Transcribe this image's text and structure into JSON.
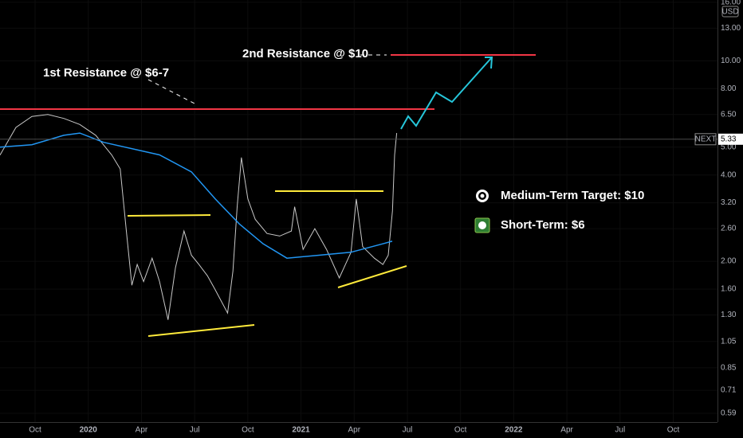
{
  "chart_data": {
    "type": "line",
    "symbol": "NEXT",
    "currency": "USD",
    "last_price": 5.33,
    "annotations": [
      "1st Resistance @ $6-7",
      "2nd Resistance @ $10"
    ],
    "legend_items": [
      "Medium-Term Target: $10",
      "Short-Term: $6"
    ],
    "log_scale": true,
    "xlim": [
      2019.585,
      2022.958
    ],
    "ylim": [
      0.55,
      16.3
    ],
    "xticks": [
      {
        "value": 2019.75,
        "label": "Oct"
      },
      2020,
      {
        "value": 2020.25,
        "label": "Apr"
      },
      {
        "value": 2020.5,
        "label": "Jul"
      },
      {
        "value": 2020.75,
        "label": "Oct"
      },
      2021,
      {
        "value": 2021.25,
        "label": "Apr"
      },
      {
        "value": 2021.5,
        "label": "Jul"
      },
      {
        "value": 2021.75,
        "label": "Oct"
      },
      2022,
      {
        "value": 2022.25,
        "label": "Apr"
      },
      {
        "value": 2022.5,
        "label": "Jul"
      },
      {
        "value": 2022.75,
        "label": "Oct"
      }
    ],
    "yticks": [
      0.59,
      0.71,
      0.85,
      1.05,
      {
        "value": 1.3,
        "label": "1.30"
      },
      {
        "value": 1.6,
        "label": "1.60"
      },
      {
        "value": 2,
        "label": "2.00"
      },
      {
        "value": 2.6,
        "label": "2.60"
      },
      {
        "value": 3.2,
        "label": "3.20"
      },
      {
        "value": 4,
        "label": "4.00"
      },
      {
        "value": 5,
        "label": "5.00"
      },
      {
        "value": 6.5,
        "label": "6.50"
      },
      {
        "value": 8,
        "label": "8.00"
      },
      {
        "value": 10,
        "label": "10.00"
      },
      {
        "value": 13,
        "label": "13.00"
      },
      {
        "value": 16,
        "label": "16.00"
      }
    ],
    "series": [
      {
        "color": "#c8c8c8",
        "x": [
          2019.585,
          2019.66,
          2019.735,
          2019.81,
          2019.885,
          2019.96,
          2020.035,
          2020.11,
          2020.15,
          2020.18,
          2020.205,
          2020.23,
          2020.26,
          2020.3,
          2020.335,
          2020.375,
          2020.41,
          2020.45,
          2020.485,
          2020.52,
          2020.56,
          2020.595,
          2020.655,
          2020.68,
          2020.7,
          2020.72,
          2020.75,
          2020.785,
          2020.84,
          2020.9,
          2020.955,
          2020.97,
          2021.01,
          2021.065,
          2021.12,
          2021.18,
          2021.235,
          2021.26,
          2021.29,
          2021.345,
          2021.385,
          2021.41,
          2021.43,
          2021.44,
          2021.45
        ],
        "values": [
          4.69,
          5.86,
          6.4,
          6.5,
          6.3,
          6.0,
          5.5,
          4.7,
          4.2,
          2.5,
          1.65,
          1.95,
          1.7,
          2.05,
          1.7,
          1.25,
          1.9,
          2.55,
          2.1,
          1.95,
          1.78,
          1.6,
          1.32,
          1.85,
          3.1,
          4.6,
          3.3,
          2.8,
          2.5,
          2.45,
          2.55,
          3.1,
          2.2,
          2.6,
          2.2,
          1.75,
          2.15,
          3.3,
          2.25,
          2.05,
          1.95,
          2.1,
          3.0,
          4.7,
          5.6
        ]
      },
      {
        "color": "#2196f3",
        "x": [
          2019.585,
          2019.735,
          2019.885,
          2019.96,
          2020.072,
          2020.335,
          2020.485,
          2020.597,
          2020.71,
          2020.822,
          2020.934,
          2021.084,
          2021.234,
          2021.384,
          2021.429
        ],
        "values": [
          5.0,
          5.1,
          5.5,
          5.6,
          5.2,
          4.7,
          4.1,
          3.3,
          2.7,
          2.3,
          2.05,
          2.1,
          2.15,
          2.3,
          2.35
        ]
      }
    ]
  }
}
